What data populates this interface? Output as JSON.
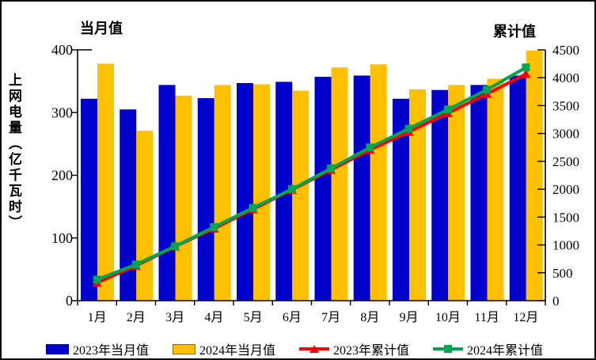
{
  "chart": {
    "left_axis_title": "当月值",
    "right_axis_title": "累计值",
    "y_axis_label": "上网电量（亿千瓦时）"
  },
  "chart_data": {
    "type": "bar+line",
    "title": "",
    "categories": [
      "1月",
      "2月",
      "3月",
      "4月",
      "5月",
      "6月",
      "7月",
      "8月",
      "9月",
      "10月",
      "11月",
      "12月"
    ],
    "series": [
      {
        "name": "2023年当月值",
        "kind": "bar",
        "axis": "left",
        "color": "#0000CC",
        "values": [
          322,
          305,
          344,
          323,
          347,
          349,
          357,
          359,
          322,
          336,
          344,
          359
        ]
      },
      {
        "name": "2024年当月值",
        "kind": "bar",
        "axis": "left",
        "color": "#FFC000",
        "values": [
          378,
          271,
          327,
          344,
          345,
          335,
          372,
          377,
          337,
          344,
          354,
          399
        ]
      },
      {
        "name": "2023年累计值",
        "kind": "line",
        "axis": "right",
        "color": "#FF0000",
        "marker": "triangle",
        "values": [
          322,
          627,
          971,
          1294,
          1641,
          1990,
          2347,
          2706,
          3028,
          3364,
          3708,
          4067
        ]
      },
      {
        "name": "2024年累计值",
        "kind": "line",
        "axis": "right",
        "color": "#00A651",
        "marker": "square",
        "values": [
          378,
          649,
          976,
          1320,
          1665,
          2000,
          2372,
          2749,
          3086,
          3430,
          3784,
          4183
        ]
      }
    ],
    "left_axis": {
      "title": "当月值",
      "label": "上网电量（亿千瓦时）",
      "min": 0,
      "max": 400,
      "step": 100,
      "ticks": [
        400,
        300,
        200,
        100,
        0
      ]
    },
    "right_axis": {
      "title": "累计值",
      "min": 0,
      "max": 4500,
      "step": 500,
      "ticks": [
        4500,
        4000,
        3500,
        3000,
        2500,
        2000,
        1500,
        1000,
        500,
        0
      ]
    },
    "legend_position": "bottom",
    "grid": false,
    "axis_color": "#000000"
  },
  "legend": {
    "items": [
      {
        "label": "2023年当月值",
        "type": "bar",
        "color": "#0000CC"
      },
      {
        "label": "2024年当月值",
        "type": "bar",
        "color": "#FFC000"
      },
      {
        "label": "2023年累计值",
        "type": "line",
        "marker": "triangle",
        "color": "#FF0000"
      },
      {
        "label": "2024年累计值",
        "type": "line",
        "marker": "square",
        "color": "#00A651"
      }
    ]
  }
}
